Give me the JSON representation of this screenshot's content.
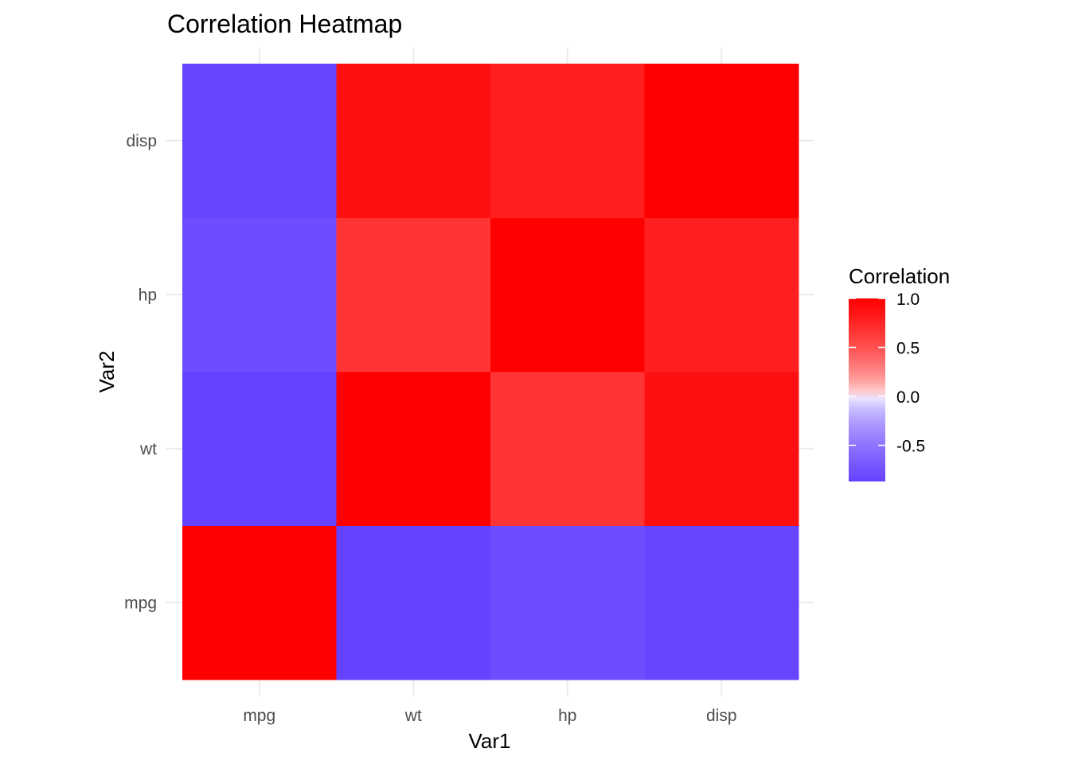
{
  "chart_data": {
    "type": "heatmap",
    "title": "Correlation Heatmap",
    "xlabel": "Var1",
    "ylabel": "Var2",
    "x_categories": [
      "mpg",
      "wt",
      "hp",
      "disp"
    ],
    "y_categories": [
      "mpg",
      "wt",
      "hp",
      "disp"
    ],
    "values": [
      [
        1.0,
        -0.87,
        -0.78,
        -0.85
      ],
      [
        -0.87,
        1.0,
        0.66,
        0.89
      ],
      [
        -0.78,
        0.66,
        1.0,
        0.79
      ],
      [
        -0.85,
        0.89,
        0.79,
        1.0
      ]
    ],
    "legend": {
      "title": "Correlation",
      "ticks": [
        "1.0",
        "0.5",
        "0.0",
        "-0.5"
      ],
      "tick_values": [
        1.0,
        0.5,
        0.0,
        -0.5
      ],
      "range": [
        -0.87,
        1.0
      ],
      "placement": "right"
    },
    "colors": {
      "low": "#5a32ff",
      "mid": "#ffffff",
      "high": "#ff0000"
    },
    "grid": true
  }
}
